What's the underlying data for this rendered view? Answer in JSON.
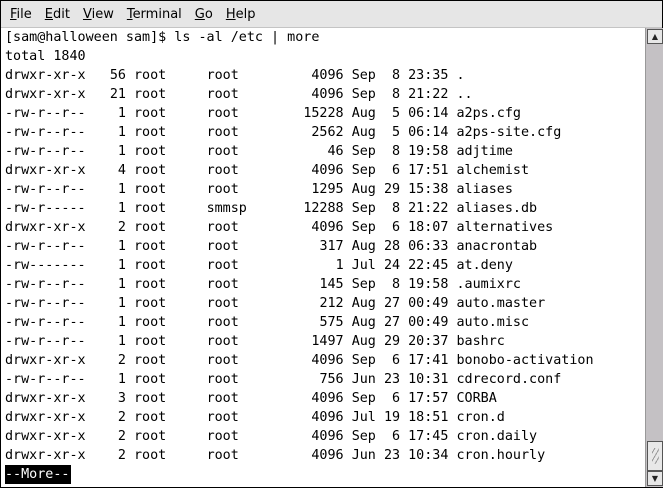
{
  "menu": [
    {
      "label": "File",
      "mnemonic": "F",
      "rest": "ile"
    },
    {
      "label": "Edit",
      "mnemonic": "E",
      "rest": "dit"
    },
    {
      "label": "View",
      "mnemonic": "V",
      "rest": "iew"
    },
    {
      "label": "Terminal",
      "mnemonic": "T",
      "rest": "erminal"
    },
    {
      "label": "Go",
      "mnemonic": "G",
      "rest": "o"
    },
    {
      "label": "Help",
      "mnemonic": "H",
      "rest": "elp"
    }
  ],
  "terminal": {
    "prompt": "[sam@halloween sam]$ ls -al /etc | more",
    "total": "total 1840",
    "rows": [
      [
        "drwxr-xr-x",
        "56",
        "root",
        "root",
        "4096",
        "Sep",
        "8",
        "23:35",
        "."
      ],
      [
        "drwxr-xr-x",
        "21",
        "root",
        "root",
        "4096",
        "Sep",
        "8",
        "21:22",
        ".."
      ],
      [
        "-rw-r--r--",
        "1",
        "root",
        "root",
        "15228",
        "Aug",
        "5",
        "06:14",
        "a2ps.cfg"
      ],
      [
        "-rw-r--r--",
        "1",
        "root",
        "root",
        "2562",
        "Aug",
        "5",
        "06:14",
        "a2ps-site.cfg"
      ],
      [
        "-rw-r--r--",
        "1",
        "root",
        "root",
        "46",
        "Sep",
        "8",
        "19:58",
        "adjtime"
      ],
      [
        "drwxr-xr-x",
        "4",
        "root",
        "root",
        "4096",
        "Sep",
        "6",
        "17:51",
        "alchemist"
      ],
      [
        "-rw-r--r--",
        "1",
        "root",
        "root",
        "1295",
        "Aug",
        "29",
        "15:38",
        "aliases"
      ],
      [
        "-rw-r-----",
        "1",
        "root",
        "smmsp",
        "12288",
        "Sep",
        "8",
        "21:22",
        "aliases.db"
      ],
      [
        "drwxr-xr-x",
        "2",
        "root",
        "root",
        "4096",
        "Sep",
        "6",
        "18:07",
        "alternatives"
      ],
      [
        "-rw-r--r--",
        "1",
        "root",
        "root",
        "317",
        "Aug",
        "28",
        "06:33",
        "anacrontab"
      ],
      [
        "-rw-------",
        "1",
        "root",
        "root",
        "1",
        "Jul",
        "24",
        "22:45",
        "at.deny"
      ],
      [
        "-rw-r--r--",
        "1",
        "root",
        "root",
        "145",
        "Sep",
        "8",
        "19:58",
        ".aumixrc"
      ],
      [
        "-rw-r--r--",
        "1",
        "root",
        "root",
        "212",
        "Aug",
        "27",
        "00:49",
        "auto.master"
      ],
      [
        "-rw-r--r--",
        "1",
        "root",
        "root",
        "575",
        "Aug",
        "27",
        "00:49",
        "auto.misc"
      ],
      [
        "-rw-r--r--",
        "1",
        "root",
        "root",
        "1497",
        "Aug",
        "29",
        "20:37",
        "bashrc"
      ],
      [
        "drwxr-xr-x",
        "2",
        "root",
        "root",
        "4096",
        "Sep",
        "6",
        "17:41",
        "bonobo-activation"
      ],
      [
        "-rw-r--r--",
        "1",
        "root",
        "root",
        "756",
        "Jun",
        "23",
        "10:31",
        "cdrecord.conf"
      ],
      [
        "drwxr-xr-x",
        "3",
        "root",
        "root",
        "4096",
        "Sep",
        "6",
        "17:57",
        "CORBA"
      ],
      [
        "drwxr-xr-x",
        "2",
        "root",
        "root",
        "4096",
        "Jul",
        "19",
        "18:51",
        "cron.d"
      ],
      [
        "drwxr-xr-x",
        "2",
        "root",
        "root",
        "4096",
        "Sep",
        "6",
        "17:45",
        "cron.daily"
      ],
      [
        "drwxr-xr-x",
        "2",
        "root",
        "root",
        "4096",
        "Jun",
        "23",
        "10:34",
        "cron.hourly"
      ]
    ],
    "more_prompt": "--More--"
  },
  "scrollbar": {
    "up_icon": "arrow-up-icon",
    "down_icon": "arrow-down-icon",
    "position_percent": 96
  }
}
